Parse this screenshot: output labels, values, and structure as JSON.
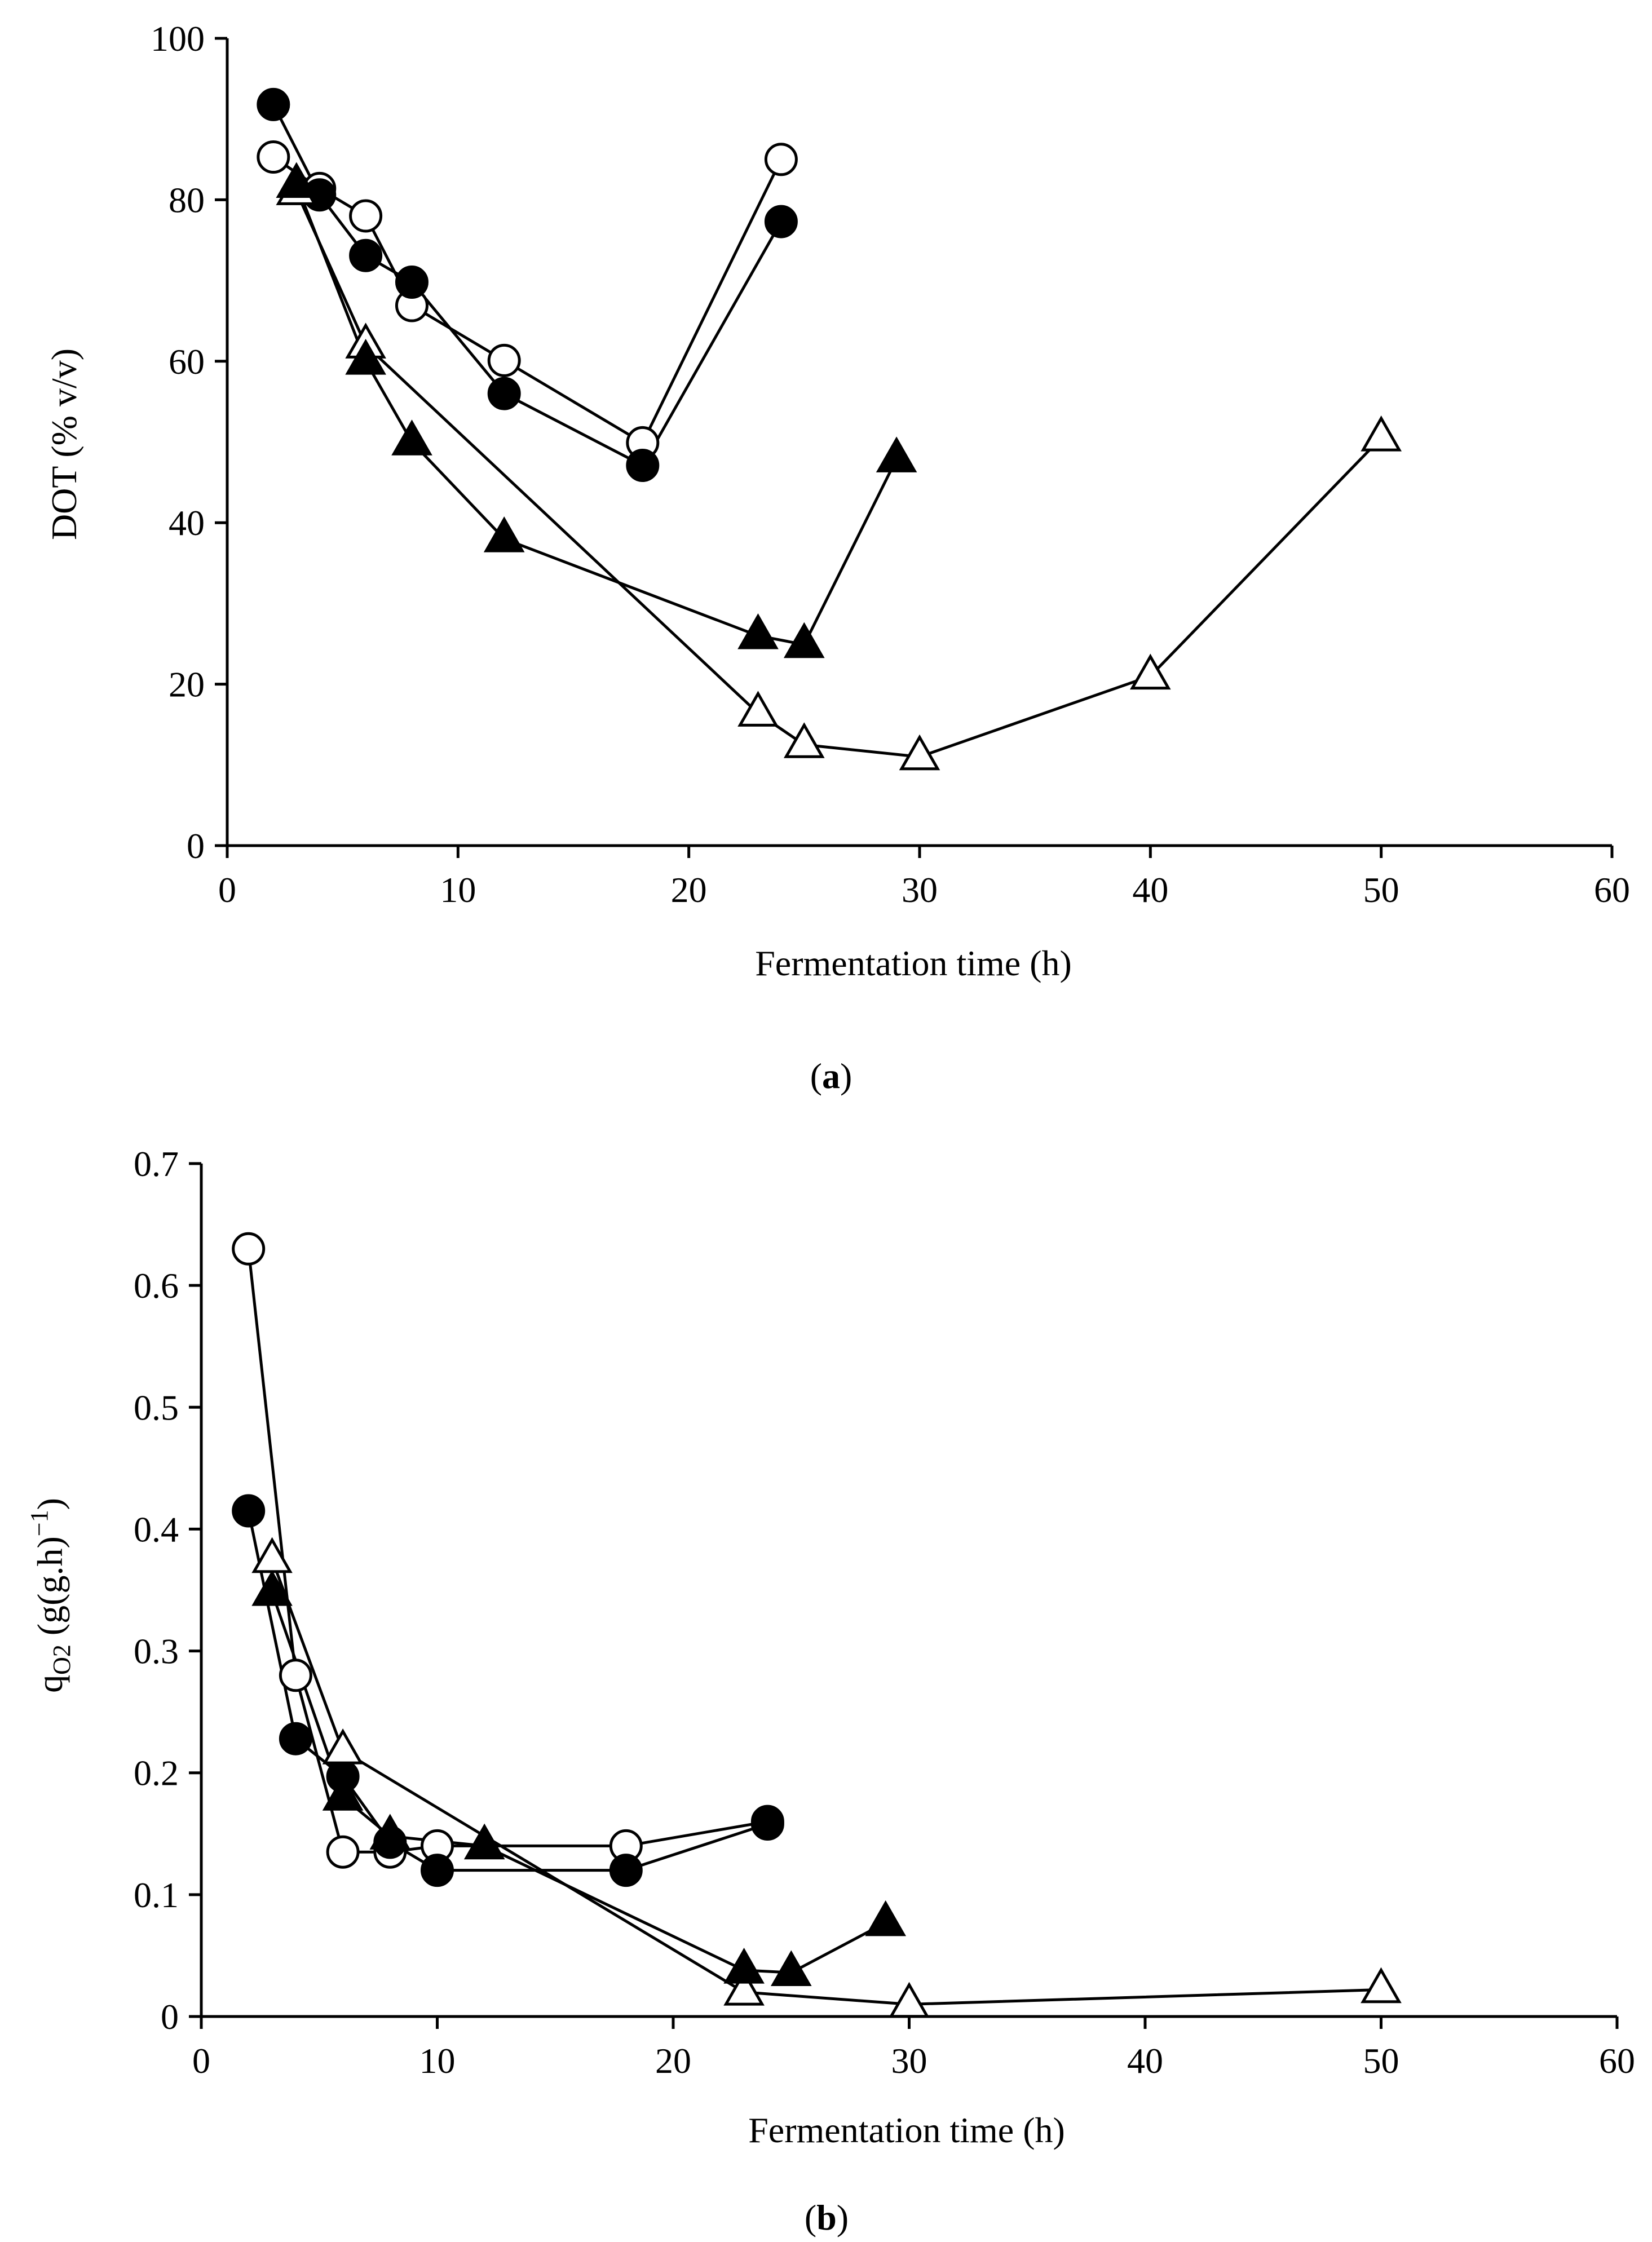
{
  "chart_data": [
    {
      "type": "line",
      "panel_label": "a",
      "xlabel": "Fermentation time (h)",
      "ylabel": "DOT (% v/v)",
      "xlim": [
        0,
        60
      ],
      "ylim": [
        0,
        100
      ],
      "xticks": [
        0,
        10,
        20,
        30,
        40,
        50,
        60
      ],
      "yticks": [
        0,
        20,
        40,
        60,
        80,
        100
      ],
      "tick_labels_x": [
        "0",
        "10",
        "20",
        "30",
        "40",
        "50",
        "60"
      ],
      "tick_labels_y": [
        "0",
        "20",
        "40",
        "60",
        "80",
        "100"
      ],
      "series": [
        {
          "marker": "open-circle",
          "x": [
            2,
            4,
            6,
            8,
            12,
            18,
            24
          ],
          "y": [
            85.3,
            81.4,
            78.0,
            66.9,
            60.1,
            49.9,
            85.0
          ]
        },
        {
          "marker": "filled-circle",
          "x": [
            2,
            4,
            6,
            8,
            12,
            18,
            24
          ],
          "y": [
            91.8,
            80.6,
            73.1,
            69.8,
            56.0,
            47.1,
            77.3
          ]
        },
        {
          "marker": "open-triangle",
          "x": [
            3,
            6,
            23,
            25,
            30,
            40,
            50
          ],
          "y": [
            81.0,
            62.0,
            16.4,
            12.5,
            11.0,
            21.0,
            50.5
          ]
        },
        {
          "marker": "filled-triangle",
          "x": [
            3,
            6,
            8,
            12,
            23,
            25,
            29
          ],
          "y": [
            81.9,
            60.0,
            50.0,
            38.0,
            26.0,
            24.9,
            47.9
          ]
        }
      ]
    },
    {
      "type": "line",
      "panel_label": "b",
      "xlabel": "Fermentation time (h)",
      "ylabel_main": "q",
      "ylabel_sub": "O2",
      "ylabel_rest": " (g(g.h)",
      "ylabel_sup": "−1",
      "ylabel_end": ")",
      "xlim": [
        0,
        60
      ],
      "ylim": [
        0,
        0.7
      ],
      "xticks": [
        0,
        10,
        20,
        30,
        40,
        50,
        60
      ],
      "yticks": [
        0,
        0.1,
        0.2,
        0.3,
        0.4,
        0.5,
        0.6,
        0.7
      ],
      "tick_labels_x": [
        "0",
        "10",
        "20",
        "30",
        "40",
        "50",
        "60"
      ],
      "tick_labels_y": [
        "0",
        "0.1",
        "0.2",
        "0.3",
        "0.4",
        "0.5",
        "0.6",
        "0.7"
      ],
      "series": [
        {
          "marker": "open-circle",
          "x": [
            2,
            4,
            6,
            8,
            10,
            18,
            24
          ],
          "y": [
            0.63,
            0.28,
            0.135,
            0.135,
            0.14,
            0.14,
            0.16
          ]
        },
        {
          "marker": "filled-circle",
          "x": [
            2,
            4,
            6,
            8,
            10,
            18,
            24
          ],
          "y": [
            0.415,
            0.228,
            0.197,
            0.143,
            0.12,
            0.12,
            0.158
          ]
        },
        {
          "marker": "open-triangle",
          "x": [
            3,
            6,
            23,
            30,
            50
          ],
          "y": [
            0.375,
            0.218,
            0.02,
            0.01,
            0.022
          ]
        },
        {
          "marker": "filled-triangle",
          "x": [
            3,
            6,
            8,
            12,
            23,
            25,
            29
          ],
          "y": [
            0.348,
            0.18,
            0.148,
            0.14,
            0.038,
            0.036,
            0.077
          ]
        }
      ]
    }
  ]
}
